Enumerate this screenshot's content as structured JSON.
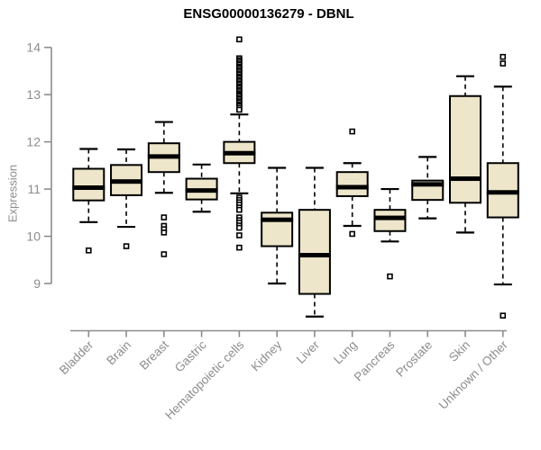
{
  "chart_data": {
    "type": "boxplot",
    "title": "ENSG00000136279 - DBNL",
    "ylabel": "Expression",
    "xlabel": "",
    "yticks": [
      9,
      10,
      11,
      12,
      13,
      14
    ],
    "ylim": [
      8.1,
      14.3
    ],
    "grid": false,
    "legend": "none",
    "colors": {
      "box_fill": "#ede6cb",
      "box_border": "#000000",
      "median": "#000000",
      "whisker": "#000000",
      "outlier_fill": "#ffffff",
      "axis": "#8c8c8c",
      "tick_label": "#8c8c8c",
      "title": "#000000"
    },
    "categories": [
      "Bladder",
      "Brain",
      "Breast",
      "Gastric",
      "Hematopoietic cells",
      "Kidney",
      "Liver",
      "Lung",
      "Pancreas",
      "Prostate",
      "Skin",
      "Unknown / Other"
    ],
    "boxes": [
      {
        "category": "Bladder",
        "whisker_low": 10.3,
        "q1": 10.76,
        "median": 11.03,
        "q3": 11.43,
        "whisker_high": 11.85,
        "outliers": [
          9.7
        ]
      },
      {
        "category": "Brain",
        "whisker_low": 10.2,
        "q1": 10.87,
        "median": 11.16,
        "q3": 11.51,
        "whisker_high": 11.84,
        "outliers": [
          9.79
        ]
      },
      {
        "category": "Breast",
        "whisker_low": 10.92,
        "q1": 11.36,
        "median": 11.69,
        "q3": 11.97,
        "whisker_high": 12.42,
        "outliers": [
          10.4,
          10.22,
          10.15,
          10.08,
          9.62
        ]
      },
      {
        "category": "Gastric",
        "whisker_low": 10.52,
        "q1": 10.78,
        "median": 10.97,
        "q3": 11.22,
        "whisker_high": 11.52,
        "outliers": []
      },
      {
        "category": "Hematopoietic cells",
        "whisker_low": 10.91,
        "q1": 11.55,
        "median": 11.76,
        "q3": 12.0,
        "whisker_high": 12.58,
        "outliers": [
          14.17,
          13.77,
          13.73,
          13.7,
          13.66,
          13.63,
          13.59,
          13.56,
          13.52,
          13.49,
          13.45,
          13.42,
          13.38,
          13.35,
          13.31,
          13.28,
          13.24,
          13.21,
          13.17,
          13.14,
          13.1,
          13.07,
          13.03,
          13.0,
          12.97,
          12.93,
          12.9,
          12.86,
          12.83,
          12.79,
          12.76,
          12.72,
          12.68,
          10.82,
          10.77,
          10.72,
          10.67,
          10.61,
          10.56,
          10.4,
          10.34,
          10.29,
          10.23,
          10.18,
          10.02,
          9.76
        ]
      },
      {
        "category": "Kidney",
        "whisker_low": 9.0,
        "q1": 9.79,
        "median": 10.35,
        "q3": 10.5,
        "whisker_high": 11.45,
        "outliers": []
      },
      {
        "category": "Liver",
        "whisker_low": 8.3,
        "q1": 8.78,
        "median": 9.6,
        "q3": 10.56,
        "whisker_high": 11.45,
        "outliers": []
      },
      {
        "category": "Lung",
        "whisker_low": 10.22,
        "q1": 10.85,
        "median": 11.04,
        "q3": 11.36,
        "whisker_high": 11.55,
        "outliers": [
          12.22,
          10.05
        ]
      },
      {
        "category": "Pancreas",
        "whisker_low": 9.89,
        "q1": 10.11,
        "median": 10.39,
        "q3": 10.56,
        "whisker_high": 11.0,
        "outliers": [
          9.15
        ]
      },
      {
        "category": "Prostate",
        "whisker_low": 10.38,
        "q1": 10.77,
        "median": 11.1,
        "q3": 11.18,
        "whisker_high": 11.68,
        "outliers": []
      },
      {
        "category": "Skin",
        "whisker_low": 10.08,
        "q1": 10.71,
        "median": 11.22,
        "q3": 12.97,
        "whisker_high": 13.39,
        "outliers": []
      },
      {
        "category": "Unknown / Other",
        "whisker_low": 8.98,
        "q1": 10.4,
        "median": 10.93,
        "q3": 11.55,
        "whisker_high": 13.17,
        "outliers": [
          13.8,
          13.66,
          8.32
        ]
      }
    ]
  }
}
